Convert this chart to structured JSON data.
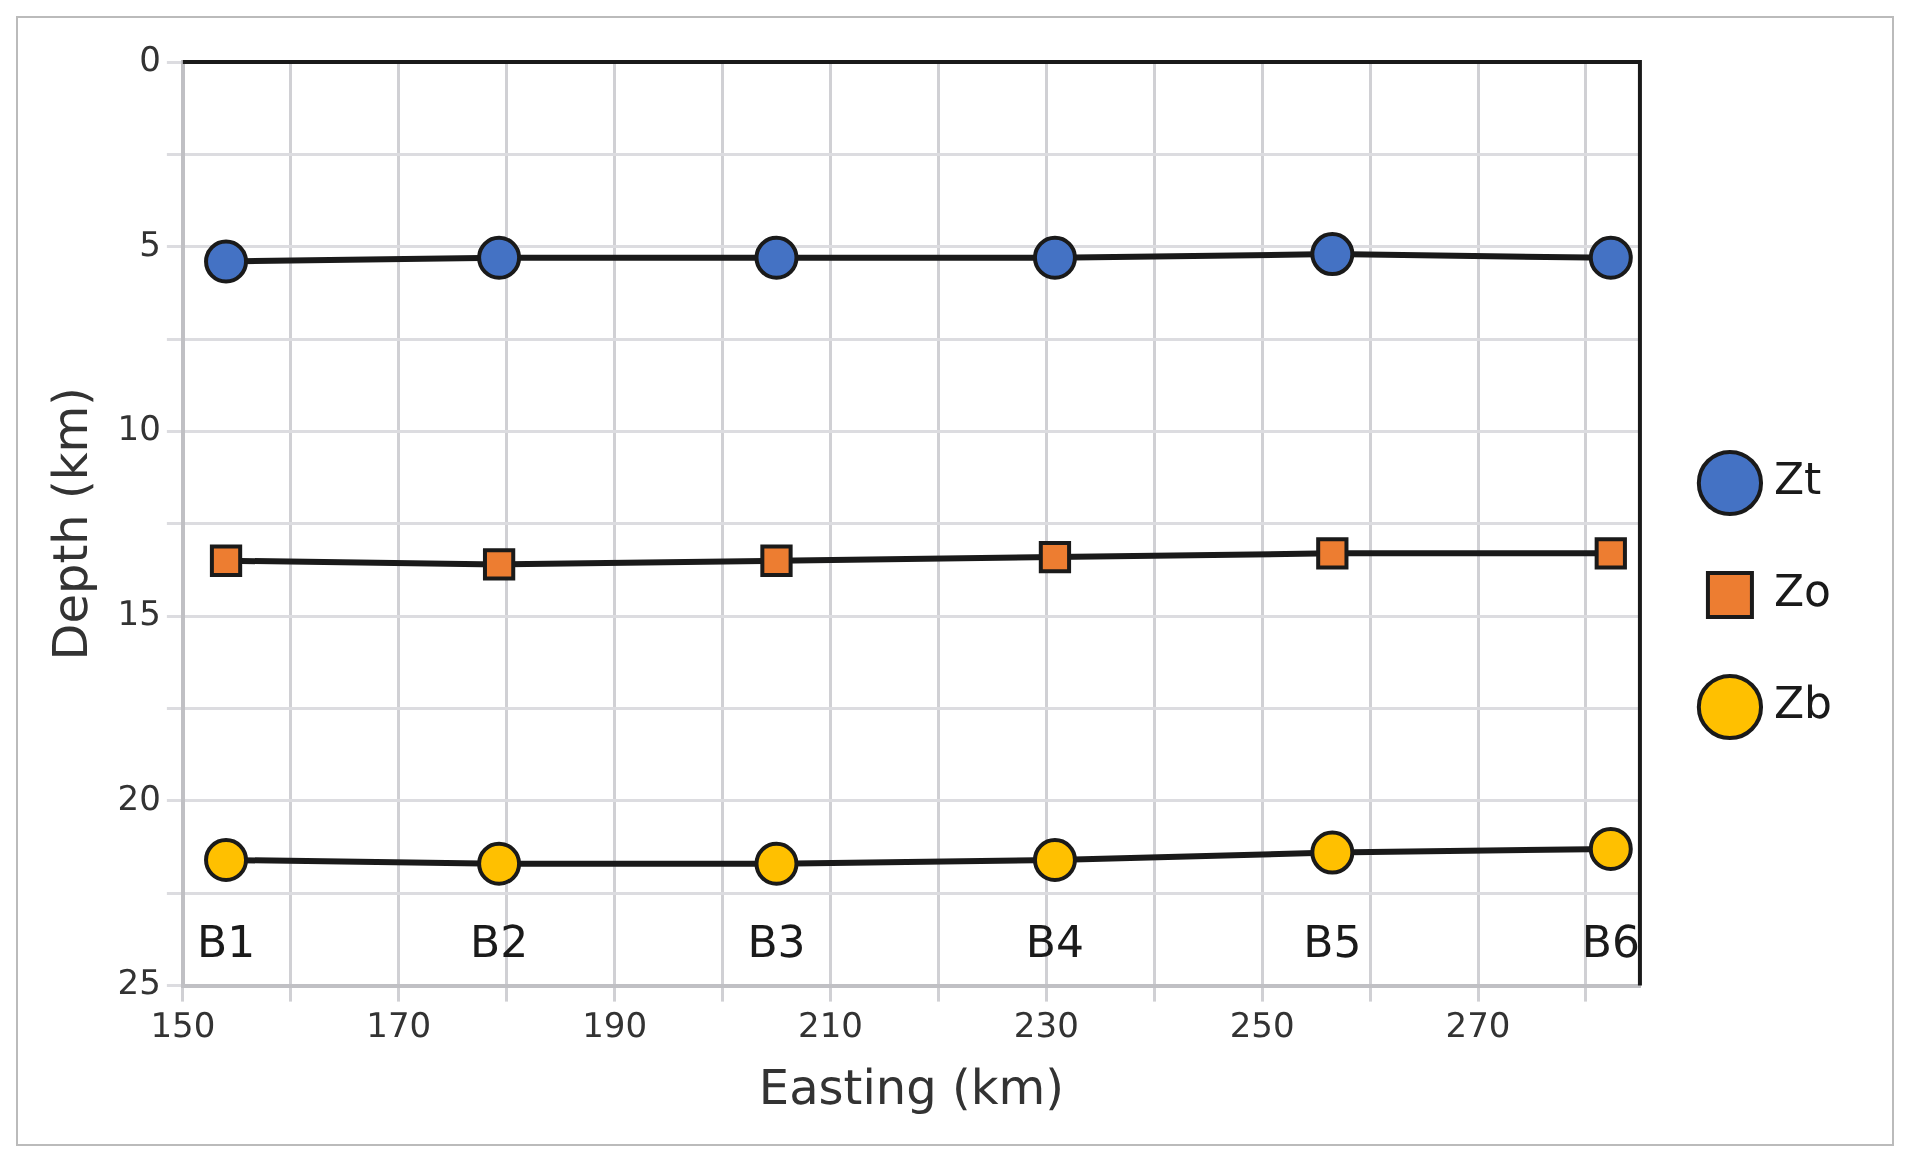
{
  "chart_data": {
    "type": "line",
    "xlabel": "Easting (km)",
    "ylabel": "Depth (km)",
    "xlim": [
      150,
      285
    ],
    "xticks": [
      150,
      {
        "value": 160,
        "label": null
      },
      170,
      {
        "value": 180,
        "label": null
      },
      190,
      {
        "value": 200,
        "label": null
      },
      210,
      {
        "value": 220,
        "label": null
      },
      230,
      {
        "value": 240,
        "label": null
      },
      250,
      {
        "value": 260,
        "label": null
      },
      270,
      {
        "value": 280,
        "label": null
      }
    ],
    "ylim": [
      25,
      0
    ],
    "yticks": [
      0,
      {
        "value": 2.5,
        "label": null
      },
      5,
      {
        "value": 7.5,
        "label": null
      },
      10,
      {
        "value": 12.5,
        "label": null
      },
      15,
      {
        "value": 17.5,
        "label": null
      },
      20,
      {
        "value": 22.5,
        "label": null
      },
      25
    ],
    "x": [
      154,
      179.3,
      205,
      230.8,
      256.5,
      282.3
    ],
    "series": [
      {
        "name": "Zt",
        "color": "#4472c4",
        "marker": "circle",
        "values": [
          5.4,
          5.3,
          5.3,
          5.3,
          5.2,
          5.3
        ]
      },
      {
        "name": "Zo",
        "color": "#ed7d31",
        "marker": "square",
        "values": [
          13.5,
          13.6,
          13.5,
          13.4,
          13.3,
          13.3
        ]
      },
      {
        "name": "Zb",
        "color": "#ffc000",
        "marker": "circle",
        "values": [
          21.6,
          21.7,
          21.7,
          21.6,
          21.4,
          21.3
        ]
      }
    ],
    "annotations": [
      "B1",
      "B2",
      "B3",
      "B4",
      "B5",
      "B6"
    ],
    "grid": true,
    "legend": "right",
    "line_style": "solid"
  }
}
